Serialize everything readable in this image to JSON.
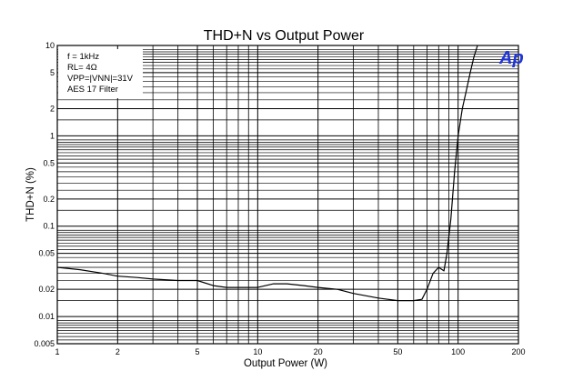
{
  "chart_data": {
    "type": "line",
    "title": "THD+N vs Output Power",
    "xlabel": "Output Power (W)",
    "ylabel": "THD+N (%)",
    "xscale": "log",
    "yscale": "log",
    "xlim": [
      1,
      200
    ],
    "ylim": [
      0.005,
      10
    ],
    "x_ticks": [
      1,
      2,
      5,
      10,
      20,
      50,
      100,
      200
    ],
    "x_tick_labels": [
      "1",
      "2",
      "5",
      "10",
      "20",
      "50",
      "100",
      "200"
    ],
    "y_ticks": [
      0.005,
      0.01,
      0.02,
      0.05,
      0.1,
      0.2,
      0.5,
      1,
      2,
      5,
      10
    ],
    "y_tick_labels": [
      "0.005",
      "0.01",
      "0.02",
      "0.05",
      "0.1",
      "0.2",
      "0.5",
      "1",
      "2",
      "5",
      "10"
    ],
    "grid": true,
    "legend_lines": [
      "f = 1kHz",
      "RL= 4Ω",
      "VPP=|VNN|=31V",
      "AES 17 Filter"
    ],
    "legend_position": "top-left",
    "logo": "Ap",
    "series": [
      {
        "color": "#000000",
        "x": [
          1,
          1.3,
          1.7,
          2,
          2.5,
          3,
          4,
          5,
          6,
          7,
          8,
          10,
          12,
          14,
          17,
          20,
          25,
          30,
          40,
          50,
          60,
          66,
          70,
          75,
          80,
          85,
          88,
          92,
          96,
          100,
          105,
          110,
          115,
          120,
          125
        ],
        "y": [
          0.035,
          0.033,
          0.03,
          0.028,
          0.027,
          0.026,
          0.025,
          0.025,
          0.022,
          0.021,
          0.021,
          0.021,
          0.023,
          0.023,
          0.022,
          0.021,
          0.02,
          0.018,
          0.016,
          0.015,
          0.015,
          0.0155,
          0.02,
          0.03,
          0.035,
          0.032,
          0.05,
          0.12,
          0.4,
          1.0,
          2.0,
          3.2,
          5.0,
          7.5,
          10
        ]
      }
    ]
  }
}
